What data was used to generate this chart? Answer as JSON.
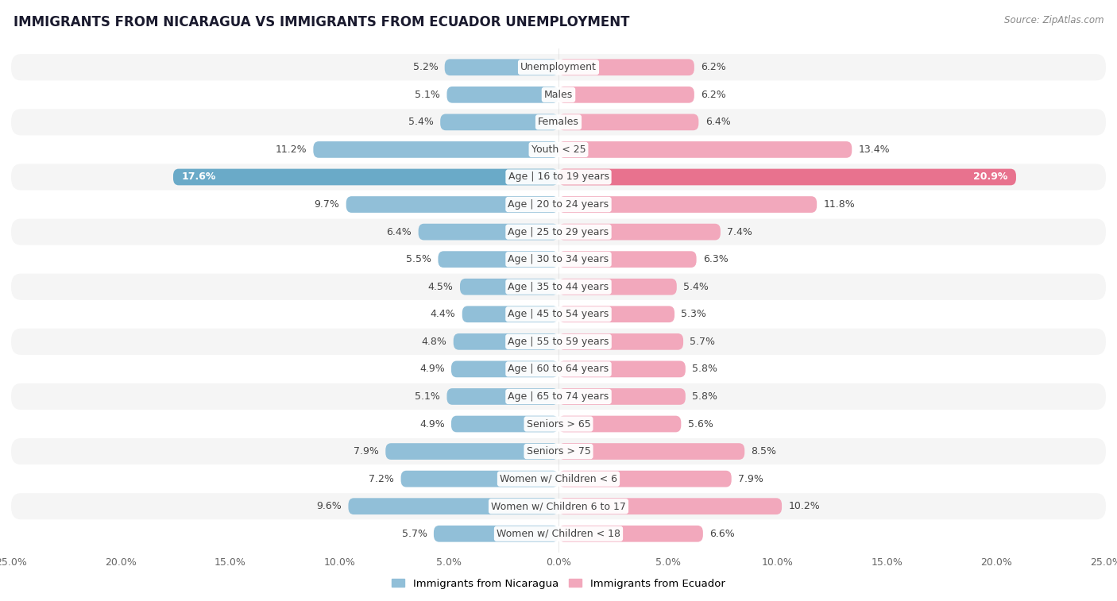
{
  "title": "IMMIGRANTS FROM NICARAGUA VS IMMIGRANTS FROM ECUADOR UNEMPLOYMENT",
  "source": "Source: ZipAtlas.com",
  "categories": [
    "Unemployment",
    "Males",
    "Females",
    "Youth < 25",
    "Age | 16 to 19 years",
    "Age | 20 to 24 years",
    "Age | 25 to 29 years",
    "Age | 30 to 34 years",
    "Age | 35 to 44 years",
    "Age | 45 to 54 years",
    "Age | 55 to 59 years",
    "Age | 60 to 64 years",
    "Age | 65 to 74 years",
    "Seniors > 65",
    "Seniors > 75",
    "Women w/ Children < 6",
    "Women w/ Children 6 to 17",
    "Women w/ Children < 18"
  ],
  "nicaragua_values": [
    5.2,
    5.1,
    5.4,
    11.2,
    17.6,
    9.7,
    6.4,
    5.5,
    4.5,
    4.4,
    4.8,
    4.9,
    5.1,
    4.9,
    7.9,
    7.2,
    9.6,
    5.7
  ],
  "ecuador_values": [
    6.2,
    6.2,
    6.4,
    13.4,
    20.9,
    11.8,
    7.4,
    6.3,
    5.4,
    5.3,
    5.7,
    5.8,
    5.8,
    5.6,
    8.5,
    7.9,
    10.2,
    6.6
  ],
  "nicaragua_color": "#91bfd8",
  "ecuador_color": "#f2a8bc",
  "nicaragua_highlight_color": "#6aaac8",
  "ecuador_highlight_color": "#e8728e",
  "row_even_color": "#f5f5f5",
  "row_odd_color": "#ffffff",
  "xlim": 25.0,
  "bar_height": 0.6,
  "legend_nicaragua": "Immigrants from Nicaragua",
  "legend_ecuador": "Immigrants from Ecuador",
  "highlight_index": 4,
  "label_fontsize": 9,
  "category_fontsize": 9,
  "title_fontsize": 12
}
